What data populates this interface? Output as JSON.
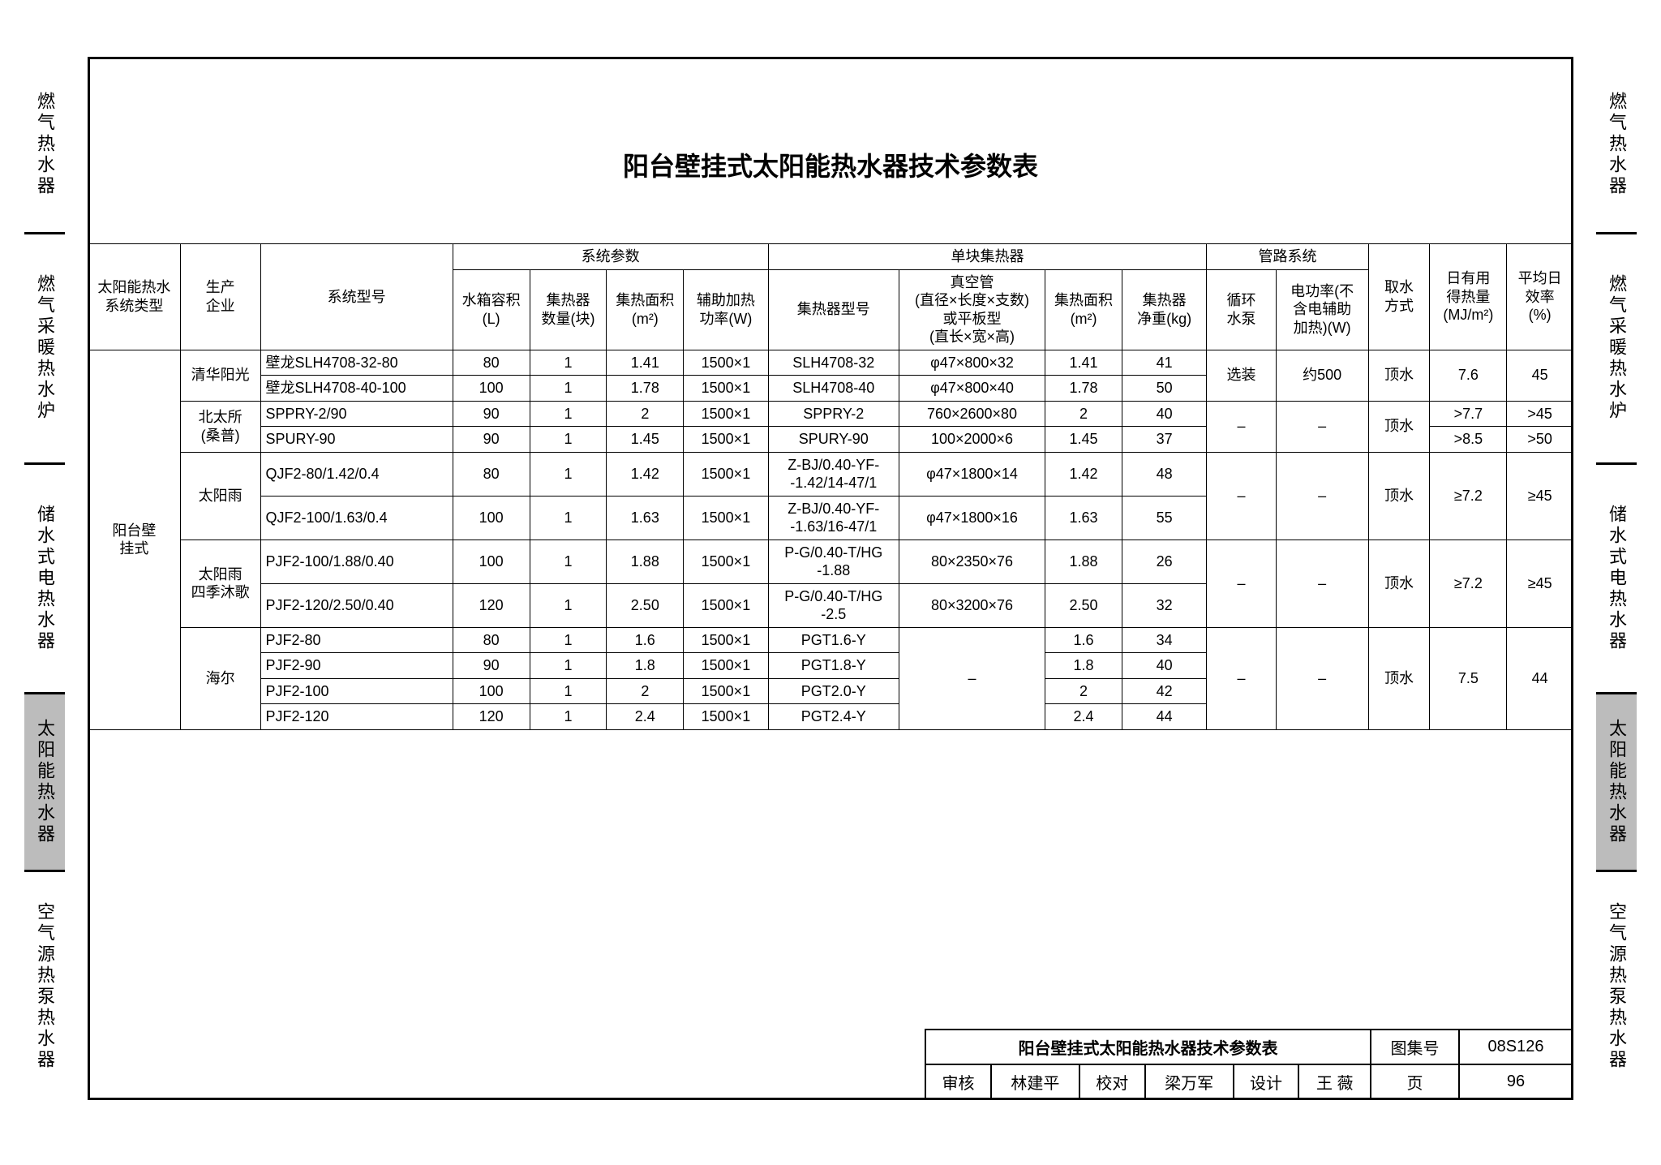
{
  "title": "阳台壁挂式太阳能热水器技术参数表",
  "side_tabs_left": [
    "燃气热水器",
    "燃气采暖热水炉",
    "储水式电热水器",
    "太阳能热水器",
    "空气源热泵热水器"
  ],
  "side_tabs_right": [
    "燃气热水器",
    "燃气采暖热水炉",
    "储水式电热水器",
    "太阳能热水器",
    "空气源热泵热水器"
  ],
  "active_tab_index": 3,
  "table": {
    "headers": {
      "system_type": "太阳能热水\n系统类型",
      "manufacturer": "生产\n企业",
      "model": "系统型号",
      "system_params": "系统参数",
      "tank": "水箱容积\n(L)",
      "coll_count": "集热器\n数量(块)",
      "coll_area": "集热面积\n(m²)",
      "aux_power": "辅助加热\n功率(W)",
      "single_coll": "单块集热器",
      "coll_model": "集热器型号",
      "tube_spec": "真空管\n(直径×长度×支数)\n或平板型\n(直长×宽×高)",
      "single_area": "集热面积\n(m²)",
      "net_weight": "集热器\n净重(kg)",
      "pipe_system": "管路系统",
      "pump": "循环\n水泵",
      "power_noaux": "电功率(不\n含电辅助\n加热)(W)",
      "water_method": "取水\n方式",
      "daily_gain": "日有用\n得热量\n(MJ/m²)",
      "avg_eff": "平均日\n效率\n(%)"
    },
    "system_type_value": "阳台壁\n挂式",
    "groups": [
      {
        "manufacturer": "清华阳光",
        "pump": "选装",
        "power": "约500",
        "method": "顶水",
        "gain": "7.6",
        "eff": "45",
        "rows": [
          {
            "model": "壁龙SLH4708-32-80",
            "tank": "80",
            "cnt": "1",
            "area": "1.41",
            "aux": "1500×1",
            "cmodel": "SLH4708-32",
            "tube": "φ47×800×32",
            "sarea": "1.41",
            "wt": "41"
          },
          {
            "model": "壁龙SLH4708-40-100",
            "tank": "100",
            "cnt": "1",
            "area": "1.78",
            "aux": "1500×1",
            "cmodel": "SLH4708-40",
            "tube": "φ47×800×40",
            "sarea": "1.78",
            "wt": "50"
          }
        ]
      },
      {
        "manufacturer": "北太所\n(桑普)",
        "pump": "–",
        "power": "–",
        "method": "顶水",
        "rows": [
          {
            "model": "SPPRY-2/90",
            "tank": "90",
            "cnt": "1",
            "area": "2",
            "aux": "1500×1",
            "cmodel": "SPPRY-2",
            "tube": "760×2600×80",
            "sarea": "2",
            "wt": "40",
            "gain": ">7.7",
            "eff": ">45"
          },
          {
            "model": "SPURY-90",
            "tank": "90",
            "cnt": "1",
            "area": "1.45",
            "aux": "1500×1",
            "cmodel": "SPURY-90",
            "tube": "100×2000×6",
            "sarea": "1.45",
            "wt": "37",
            "gain": ">8.5",
            "eff": ">50"
          }
        ]
      },
      {
        "manufacturer": "太阳雨",
        "pump": "–",
        "power": "–",
        "method": "顶水",
        "gain": "≥7.2",
        "eff": "≥45",
        "rows": [
          {
            "model": "QJF2-80/1.42/0.4",
            "tank": "80",
            "cnt": "1",
            "area": "1.42",
            "aux": "1500×1",
            "cmodel": "Z-BJ/0.40-YF-\n-1.42/14-47/1",
            "tube": "φ47×1800×14",
            "sarea": "1.42",
            "wt": "48"
          },
          {
            "model": "QJF2-100/1.63/0.4",
            "tank": "100",
            "cnt": "1",
            "area": "1.63",
            "aux": "1500×1",
            "cmodel": "Z-BJ/0.40-YF-\n-1.63/16-47/1",
            "tube": "φ47×1800×16",
            "sarea": "1.63",
            "wt": "55"
          }
        ]
      },
      {
        "manufacturer": "太阳雨\n四季沐歌",
        "pump": "–",
        "power": "–",
        "method": "顶水",
        "gain": "≥7.2",
        "eff": "≥45",
        "rows": [
          {
            "model": "PJF2-100/1.88/0.40",
            "tank": "100",
            "cnt": "1",
            "area": "1.88",
            "aux": "1500×1",
            "cmodel": "P-G/0.40-T/HG\n-1.88",
            "tube": "80×2350×76",
            "sarea": "1.88",
            "wt": "26"
          },
          {
            "model": "PJF2-120/2.50/0.40",
            "tank": "120",
            "cnt": "1",
            "area": "2.50",
            "aux": "1500×1",
            "cmodel": "P-G/0.40-T/HG\n-2.5",
            "tube": "80×3200×76",
            "sarea": "2.50",
            "wt": "32"
          }
        ]
      },
      {
        "manufacturer": "海尔",
        "pump": "–",
        "power": "–",
        "method": "顶水",
        "gain": "7.5",
        "eff": "44",
        "tube": "–",
        "rows": [
          {
            "model": "PJF2-80",
            "tank": "80",
            "cnt": "1",
            "area": "1.6",
            "aux": "1500×1",
            "cmodel": "PGT1.6-Y",
            "sarea": "1.6",
            "wt": "34"
          },
          {
            "model": "PJF2-90",
            "tank": "90",
            "cnt": "1",
            "area": "1.8",
            "aux": "1500×1",
            "cmodel": "PGT1.8-Y",
            "sarea": "1.8",
            "wt": "40"
          },
          {
            "model": "PJF2-100",
            "tank": "100",
            "cnt": "1",
            "area": "2",
            "aux": "1500×1",
            "cmodel": "PGT2.0-Y",
            "sarea": "2",
            "wt": "42"
          },
          {
            "model": "PJF2-120",
            "tank": "120",
            "cnt": "1",
            "area": "2.4",
            "aux": "1500×1",
            "cmodel": "PGT2.4-Y",
            "sarea": "2.4",
            "wt": "44"
          }
        ]
      }
    ]
  },
  "title_block": {
    "name": "阳台壁挂式太阳能热水器技术参数表",
    "atlas_label": "图集号",
    "atlas": "08S126",
    "page_label": "页",
    "page": "96",
    "review": "审核",
    "reviewer": "林建平",
    "check": "校对",
    "checker": "梁万军",
    "design": "设计",
    "designer": "王 薇"
  }
}
